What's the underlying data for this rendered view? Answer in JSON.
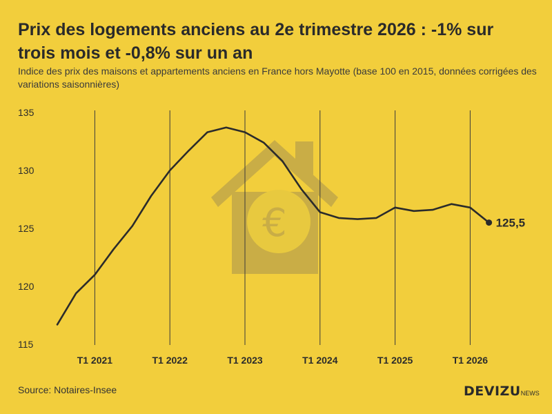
{
  "header": {
    "title": "Prix des logements anciens au 2e trimestre 2026 : -1% sur trois mois et -0,8% sur un an",
    "subtitle": "Indice des prix des maisons et appartements anciens en France hors Mayotte (base 100 en 2015, données corrigées des variations saisonnières)"
  },
  "footer": {
    "source": "Source: Notaires-Insee",
    "logo_main": "DEVIZU",
    "logo_suffix": "NEWS"
  },
  "colors": {
    "background": "#f2ce3c",
    "line": "#2b2b2b",
    "house": "#c9ad46",
    "coin": "#e8c93f",
    "text": "#2b2b2b"
  },
  "icons": [
    "house-icon",
    "euro-icon"
  ],
  "chart_data": {
    "type": "line",
    "title": "Prix des logements anciens au 2e trimestre 2026 : -1% sur trois mois et -0,8% sur un an",
    "xlabel": "",
    "ylabel": "",
    "ylim": [
      115,
      135
    ],
    "yticks": [
      115,
      120,
      125,
      130,
      135
    ],
    "grid": "vertical lines at T1 of each year",
    "x_ticks": [
      "T1 2021",
      "T1 2022",
      "T1 2023",
      "T1 2024",
      "T1 2025",
      "T1 2026"
    ],
    "x": [
      "T3 2020",
      "T4 2020",
      "T1 2021",
      "T2 2021",
      "T3 2021",
      "T4 2021",
      "T1 2022",
      "T2 2022",
      "T3 2022",
      "T4 2022",
      "T1 2023",
      "T2 2023",
      "T3 2023",
      "T4 2023",
      "T1 2024",
      "T2 2024",
      "T3 2024",
      "T4 2024",
      "T1 2025",
      "T2 2025",
      "T3 2025",
      "T4 2025",
      "T1 2026",
      "T2 2026"
    ],
    "series": [
      {
        "values": [
          116.7,
          119.4,
          121.0,
          123.2,
          125.2,
          127.8,
          130.0,
          131.7,
          133.3,
          133.7,
          133.3,
          132.4,
          130.8,
          128.4,
          126.4,
          125.9,
          125.8,
          125.9,
          126.8,
          126.5,
          126.6,
          127.1,
          126.8,
          125.5
        ]
      }
    ],
    "last_value_label": "125,5"
  }
}
